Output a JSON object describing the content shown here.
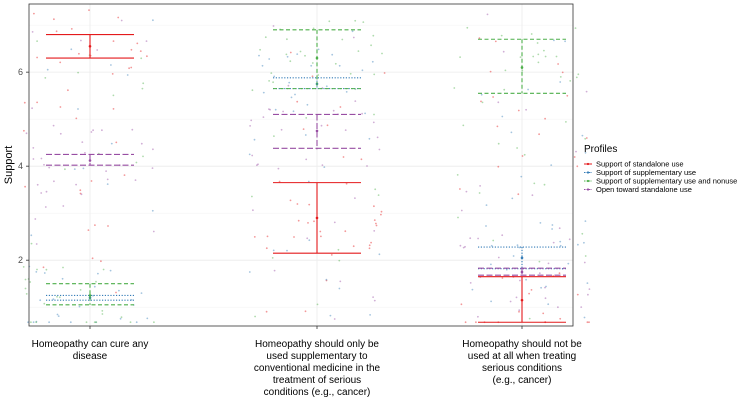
{
  "chart_data": {
    "type": "scatter",
    "title": "",
    "xlabel": "",
    "ylabel": "Support",
    "ylim": [
      0.6,
      7.45
    ],
    "yticks": [
      2,
      4,
      6
    ],
    "grid": true,
    "categories": [
      {
        "lines": [
          "Homeopathy can cure any",
          "disease"
        ]
      },
      {
        "lines": [
          "Homeopathy should only be",
          "used supplementary to",
          "conventional medicine in the",
          "treatment of serious",
          "conditions (e.g., cancer)"
        ]
      },
      {
        "lines": [
          "Homeopathy should not be",
          "used at all when treating",
          "serious conditions",
          "(e.g., cancer)"
        ]
      }
    ],
    "legend": {
      "title": "Profiles",
      "position": "right"
    },
    "series": [
      {
        "name": "Support of standalone use",
        "color": "#e41a1c",
        "dash": "solid",
        "intervals": [
          {
            "low": 6.3,
            "mid": 6.55,
            "high": 6.8
          },
          {
            "low": 2.15,
            "mid": 2.9,
            "high": 3.65
          },
          {
            "low": 0.68,
            "mid": 1.15,
            "high": 1.65
          }
        ]
      },
      {
        "name": "Support of supplementary use",
        "color": "#377eb8",
        "dash": "dotted",
        "intervals": [
          {
            "low": 1.15,
            "mid": 1.2,
            "high": 1.25
          },
          {
            "low": 5.65,
            "mid": 5.75,
            "high": 5.88
          },
          {
            "low": 1.82,
            "mid": 2.05,
            "high": 2.28
          }
        ]
      },
      {
        "name": "Support of supplementary use and nonuse",
        "color": "#4daf4a",
        "dash": "dashed",
        "intervals": [
          {
            "low": 1.05,
            "mid": 1.25,
            "high": 1.5
          },
          {
            "low": 5.65,
            "mid": 6.3,
            "high": 6.9
          },
          {
            "low": 5.55,
            "mid": 6.1,
            "high": 6.7
          }
        ]
      },
      {
        "name": "Open toward standalone use",
        "color": "#984ea3",
        "dash": "longdash",
        "intervals": [
          {
            "low": 4.02,
            "mid": 4.12,
            "high": 4.25
          },
          {
            "low": 4.38,
            "mid": 4.75,
            "high": 5.1
          },
          {
            "low": 1.68,
            "mid": 1.75,
            "high": 1.83
          }
        ]
      }
    ]
  }
}
